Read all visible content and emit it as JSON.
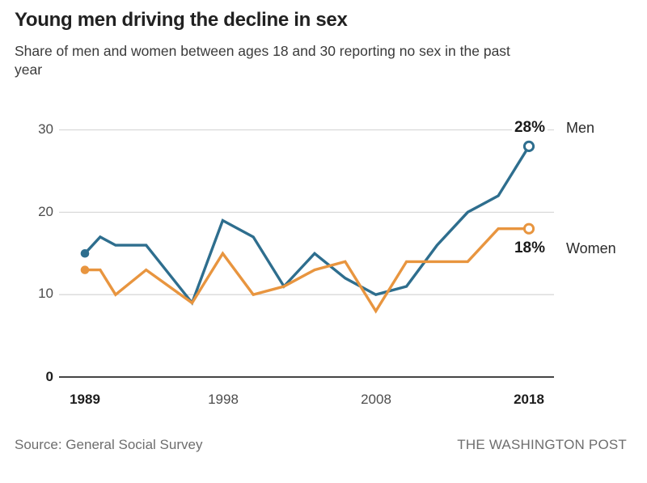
{
  "header": {
    "title": "Young men driving the decline in sex",
    "subtitle_line1": "Share of men and women between ages 18 and 30 reporting no sex in the past",
    "subtitle_line2": "year"
  },
  "chart_data": {
    "type": "line",
    "x": [
      1989,
      1990,
      1991,
      1993,
      1996,
      1998,
      2000,
      2002,
      2004,
      2006,
      2008,
      2010,
      2012,
      2014,
      2016,
      2018
    ],
    "series": [
      {
        "name": "Men",
        "color": "#2e6e8e",
        "end_label": "28%",
        "values": [
          15,
          17,
          16,
          16,
          9,
          19,
          17,
          11,
          15,
          12,
          10,
          11,
          16,
          20,
          22,
          28
        ]
      },
      {
        "name": "Women",
        "color": "#e8953f",
        "end_label": "18%",
        "values": [
          13,
          13,
          10,
          13,
          9,
          15,
          10,
          11,
          13,
          14,
          8,
          14,
          14,
          14,
          18,
          18
        ]
      }
    ],
    "y_ticks": [
      30,
      20,
      10,
      0
    ],
    "x_tick_labels": [
      "1989",
      "1998",
      "2008",
      "2018"
    ],
    "ylim": [
      0,
      30
    ],
    "xlim": [
      1989,
      2018
    ],
    "grid": "horizontal-only",
    "legend_position": "right-of-line-ends",
    "marker_start": "filled-dot",
    "marker_end": "open-dot"
  },
  "footer": {
    "source": "Source: General Social Survey",
    "brand": "THE WASHINGTON POST"
  },
  "colors": {
    "grid": "#d9d9d9",
    "axis": "#454545",
    "background": "#ffffff"
  }
}
